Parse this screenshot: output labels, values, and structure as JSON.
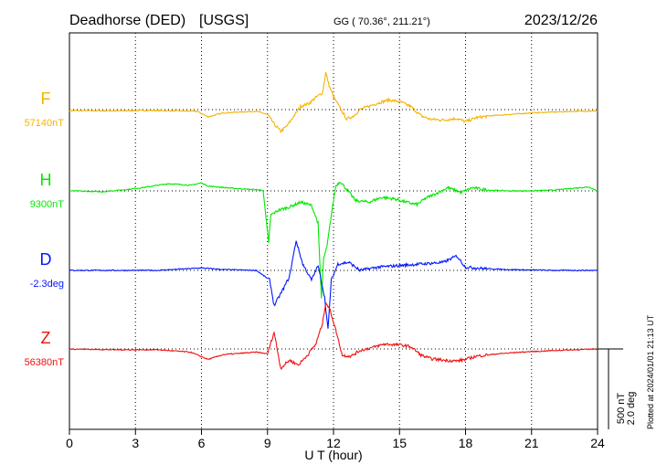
{
  "header": {
    "station": "Deadhorse (DED)",
    "source": "[USGS]",
    "coords": "GG ( 70.36°, 211.21°)",
    "date": "2023/12/26"
  },
  "plotted_note": "Plotted at 2024/01/01 21:13 UT",
  "scale": {
    "field": "500 nT",
    "angle": "2.0 deg"
  },
  "chart_data": {
    "type": "line",
    "title": "",
    "xlabel": "U T (hour)",
    "ylabel": "",
    "xlim": [
      0,
      24
    ],
    "x_ticks": [
      0,
      3,
      6,
      9,
      12,
      15,
      18,
      21,
      24
    ],
    "x_tick_labels": [
      "0",
      "3",
      "6",
      "9",
      "12",
      "15",
      "18",
      "21",
      "24"
    ],
    "grid": "vertical dotted every 3 hours; dotted baseline per trace",
    "units_per_track": "500 nT",
    "series": [
      {
        "name": "F",
        "baseline_label": "57140nT",
        "color": "#f5b301",
        "units": "nT",
        "x": [
          0,
          2,
          3.5,
          5.8,
          6.3,
          7,
          8.5,
          9.0,
          9.3,
          9.6,
          9.9,
          10.2,
          10.5,
          10.9,
          11.2,
          11.5,
          11.65,
          11.8,
          12.0,
          12.3,
          12.6,
          12.9,
          13.2,
          13.6,
          14.0,
          14.5,
          15.0,
          15.5,
          16.0,
          16.4,
          17.0,
          17.6,
          18.0,
          18.5,
          19.0,
          20,
          21,
          22,
          23,
          24
        ],
        "values": [
          -6,
          -8,
          -5,
          -10,
          -45,
          -20,
          -10,
          -30,
          -90,
          -135,
          -100,
          -40,
          20,
          40,
          75,
          105,
          230,
          150,
          80,
          10,
          -60,
          -40,
          0,
          20,
          40,
          60,
          50,
          20,
          -40,
          -60,
          -65,
          -55,
          -75,
          -50,
          -40,
          -30,
          -20,
          -15,
          -10,
          -8
        ]
      },
      {
        "name": "H",
        "baseline_label": "9300nT",
        "color": "#00e800",
        "units": "nT",
        "x": [
          0,
          1.5,
          2.7,
          3.3,
          4.5,
          5.5,
          6.0,
          6.3,
          7.5,
          8.8,
          9.05,
          9.15,
          9.5,
          10.0,
          10.5,
          11.0,
          11.3,
          11.45,
          11.55,
          11.7,
          11.9,
          12.1,
          12.3,
          12.6,
          13.0,
          13.6,
          14.2,
          14.8,
          15.3,
          15.8,
          16.2,
          16.6,
          17.2,
          17.8,
          18.3,
          19.0,
          20,
          21,
          22,
          23.6,
          24
        ],
        "values": [
          0,
          -5,
          10,
          20,
          45,
          35,
          50,
          30,
          15,
          5,
          -320,
          -150,
          -120,
          -100,
          -70,
          -90,
          -200,
          -670,
          -420,
          -350,
          -150,
          30,
          60,
          10,
          -60,
          -70,
          -40,
          -50,
          -70,
          -85,
          -45,
          -20,
          20,
          -10,
          20,
          5,
          0,
          0,
          5,
          25,
          0
        ]
      },
      {
        "name": "D",
        "baseline_label": "-2.3deg",
        "color": "#0018ff",
        "units": "deg",
        "x": [
          0,
          2,
          4,
          6,
          7,
          8.5,
          9.1,
          9.3,
          9.7,
          10.0,
          10.3,
          10.6,
          11.0,
          11.3,
          11.6,
          11.75,
          11.9,
          12.2,
          12.7,
          13.2,
          14.0,
          15.0,
          16.0,
          17.0,
          17.6,
          18.0,
          19.0,
          20,
          22,
          24
        ],
        "values": [
          0,
          0,
          0,
          15,
          5,
          0,
          -60,
          -220,
          -120,
          -40,
          185,
          40,
          -60,
          30,
          -170,
          -370,
          -60,
          40,
          50,
          0,
          20,
          30,
          40,
          50,
          90,
          20,
          10,
          5,
          0,
          0
        ]
      },
      {
        "name": "Z",
        "baseline_label": "56380nT",
        "color": "#f01010",
        "units": "nT",
        "x": [
          0,
          2,
          4,
          5.5,
          6.3,
          7.0,
          8.5,
          9.0,
          9.3,
          9.6,
          10.0,
          10.4,
          10.8,
          11.2,
          11.5,
          11.65,
          11.85,
          12.1,
          12.4,
          12.8,
          13.2,
          13.8,
          14.3,
          15.0,
          15.5,
          16.0,
          16.4,
          17.0,
          17.6,
          18.0,
          18.5,
          19.5,
          20.5,
          22,
          24
        ],
        "values": [
          0,
          -5,
          -5,
          -20,
          -65,
          -35,
          -20,
          -30,
          105,
          -120,
          -70,
          -100,
          -40,
          30,
          160,
          290,
          240,
          120,
          -40,
          -45,
          -10,
          10,
          30,
          25,
          15,
          -40,
          -60,
          -70,
          -75,
          -65,
          -45,
          -30,
          -20,
          -10,
          0
        ]
      }
    ]
  }
}
